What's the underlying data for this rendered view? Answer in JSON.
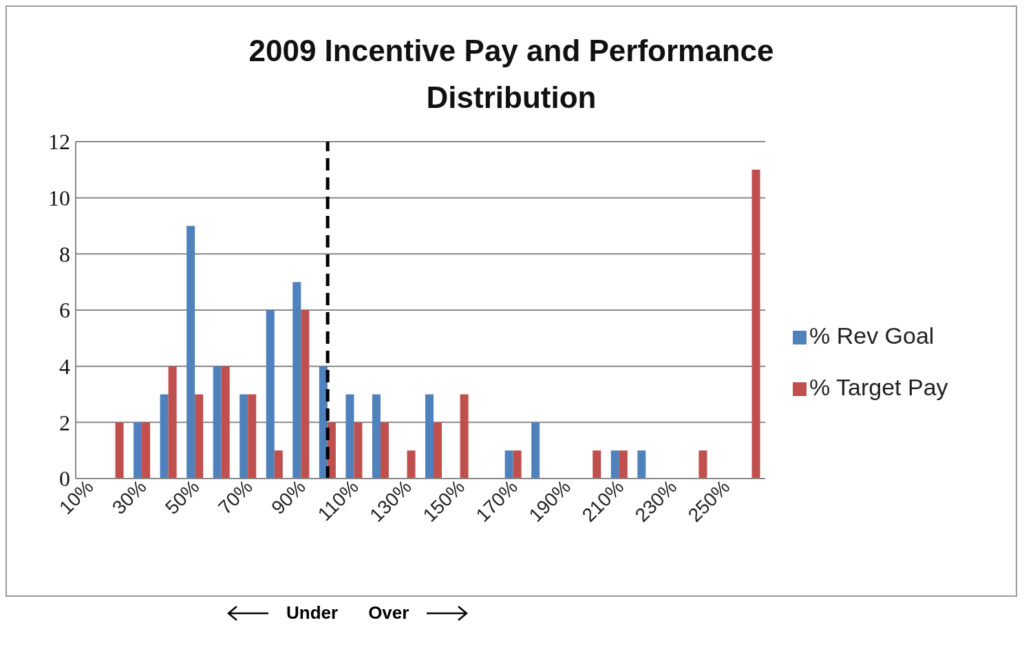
{
  "chart_data": {
    "type": "bar",
    "title": "2009 Incentive Pay and Performance Distribution",
    "x": [
      10,
      20,
      30,
      40,
      50,
      60,
      70,
      80,
      90,
      100,
      110,
      120,
      130,
      140,
      150,
      160,
      170,
      180,
      190,
      200,
      210,
      220,
      230,
      240,
      250,
      260
    ],
    "xlim": [
      5,
      265
    ],
    "xticks": [
      {
        "value": 10,
        "label": "10%"
      },
      {
        "value": 30,
        "label": "30%"
      },
      {
        "value": 50,
        "label": "50%"
      },
      {
        "value": 70,
        "label": "70%"
      },
      {
        "value": 90,
        "label": "90%"
      },
      {
        "value": 110,
        "label": "110%"
      },
      {
        "value": 130,
        "label": "130%"
      },
      {
        "value": 150,
        "label": "150%"
      },
      {
        "value": 170,
        "label": "170%"
      },
      {
        "value": 190,
        "label": "190%"
      },
      {
        "value": 210,
        "label": "210%"
      },
      {
        "value": 230,
        "label": "230%"
      },
      {
        "value": 250,
        "label": "250%"
      }
    ],
    "series": [
      {
        "name": "% Rev Goal",
        "color": "#4f81bd",
        "values": [
          0,
          0,
          2,
          3,
          9,
          4,
          3,
          6,
          7,
          4,
          3,
          3,
          0,
          3,
          0,
          0,
          1,
          2,
          0,
          0,
          1,
          1,
          0,
          0,
          0,
          0
        ]
      },
      {
        "name": "% Target Pay",
        "color": "#c0504d",
        "values": [
          0,
          2,
          2,
          4,
          3,
          4,
          3,
          1,
          6,
          2,
          2,
          2,
          1,
          2,
          3,
          0,
          1,
          0,
          0,
          1,
          1,
          0,
          0,
          1,
          0,
          11
        ]
      }
    ],
    "ylim": [
      0,
      12
    ],
    "yticks": [
      0,
      2,
      4,
      6,
      8,
      10,
      12
    ],
    "grid": "y",
    "legend": "right",
    "ref_lines": [
      {
        "axis": "x",
        "value": 100,
        "color": "#000000",
        "line_style": "dashed"
      }
    ],
    "annotations": [
      "Under",
      "Over"
    ]
  }
}
